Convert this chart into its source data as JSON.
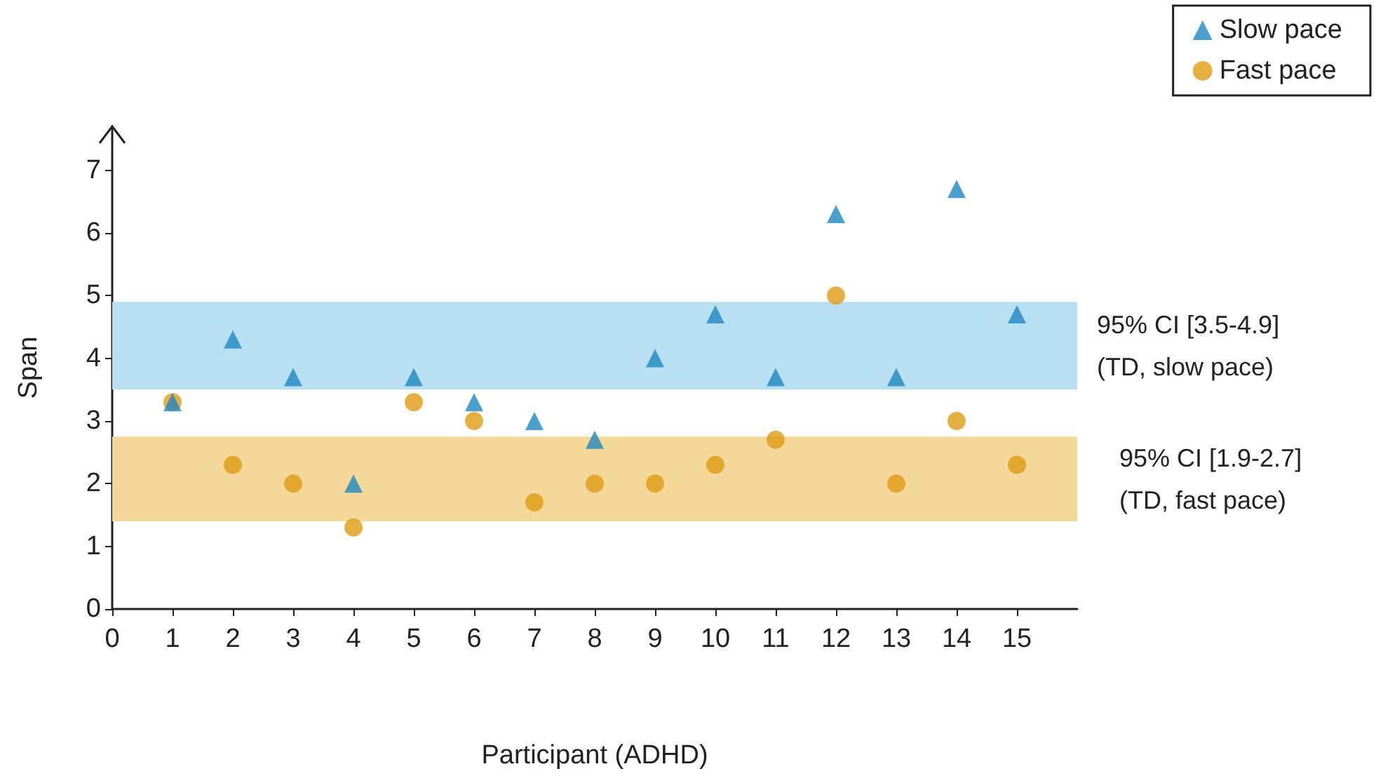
{
  "chart_data": {
    "type": "scatter",
    "xlabel": "Participant (ADHD)",
    "ylabel": "Span",
    "x": [
      1,
      2,
      3,
      4,
      5,
      6,
      7,
      8,
      9,
      10,
      11,
      12,
      13,
      14,
      15
    ],
    "series": [
      {
        "name": "Slow pace",
        "color": "#1f88c0",
        "marker": "triangle",
        "values": [
          3.3,
          4.3,
          3.7,
          2.0,
          3.7,
          3.3,
          3.0,
          2.7,
          4.0,
          4.7,
          3.7,
          6.3,
          3.7,
          6.7,
          4.7
        ]
      },
      {
        "name": "Fast pace",
        "color": "#e09b13",
        "marker": "circle",
        "values": [
          3.3,
          2.3,
          2.0,
          1.3,
          3.3,
          3.0,
          1.7,
          2.0,
          2.0,
          2.3,
          2.7,
          5.0,
          2.0,
          3.0,
          2.3
        ]
      }
    ],
    "bands": [
      {
        "axis": "y",
        "from": 3.5,
        "to": 4.9,
        "label": "95% CI [3.5-4.9]\n(TD, slow pace)",
        "color": "#b9dff2"
      },
      {
        "axis": "y",
        "from": 1.4,
        "to": 2.75,
        "label": "95% CI [1.9-2.7]\n(TD, fast pace)",
        "color": "#f3d89a"
      }
    ],
    "xlim": [
      0,
      16
    ],
    "xticks": [
      0,
      1,
      2,
      3,
      4,
      5,
      6,
      7,
      8,
      9,
      10,
      11,
      12,
      13,
      14,
      15
    ],
    "ylim": [
      0,
      7.7
    ],
    "yticks": [
      0,
      1,
      2,
      3,
      4,
      5,
      6,
      7
    ],
    "grid": false,
    "legend": "top right"
  }
}
